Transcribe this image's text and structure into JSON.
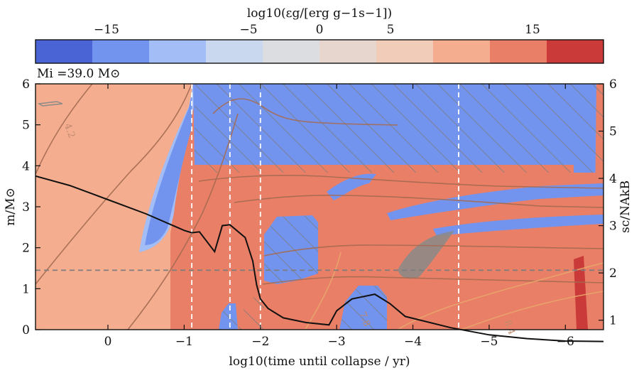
{
  "colorbar": {
    "label": "log10(εg/[erg g−1s−1])",
    "ticks": [
      {
        "value": -15,
        "label": "−15"
      },
      {
        "value": -5,
        "label": "−5"
      },
      {
        "value": 0,
        "label": "0"
      },
      {
        "value": 5,
        "label": "5"
      },
      {
        "value": 15,
        "label": "15"
      }
    ],
    "range": [
      -20,
      20
    ],
    "bins": 10,
    "colors": [
      "#4a64d6",
      "#7394ee",
      "#a3bdf7",
      "#c9d7ef",
      "#dcdde1",
      "#e6d6ce",
      "#f1cdb9",
      "#f4ad8f",
      "#e97f66",
      "#c93a38"
    ]
  },
  "annotation": {
    "mass_label": "Mi =39.0 M⊙"
  },
  "chart_data": {
    "type": "heatmap",
    "xlabel": "log10(time until collapse / yr)",
    "ylabel": "m/M⊙",
    "ylabel_right": "sc/NAkB",
    "xlim": [
      0.95,
      -6.5
    ],
    "ylim": [
      0,
      6
    ],
    "ylim_right": [
      0.8,
      6
    ],
    "x_ticks": [
      {
        "value": 0,
        "label": "0"
      },
      {
        "value": -1,
        "label": "−1"
      },
      {
        "value": -2,
        "label": "−2"
      },
      {
        "value": -3,
        "label": "−3"
      },
      {
        "value": -4,
        "label": "−4"
      },
      {
        "value": -5,
        "label": "−5"
      },
      {
        "value": -6,
        "label": "−6"
      }
    ],
    "y_ticks": [
      0,
      1,
      2,
      3,
      4,
      5,
      6
    ],
    "y_ticks_right": [
      1,
      2,
      3,
      4,
      5,
      6
    ],
    "vertical_lines_x": [
      -1.1,
      -1.6,
      -2.0,
      -4.6
    ],
    "horizontal_line_y": 1.45,
    "contour_labels": [
      {
        "text": "4.2",
        "x": 0.57,
        "y": 5.0
      },
      {
        "text": "7.8",
        "x": -3.3,
        "y": 0.4
      },
      {
        "text": "8.4",
        "x": -5.2,
        "y": 0.2
      }
    ],
    "entropy_line": {
      "x": [
        0.95,
        0.5,
        0.0,
        -0.5,
        -1.0,
        -1.1,
        -1.2,
        -1.4,
        -1.5,
        -1.6,
        -1.8,
        -1.9,
        -1.95,
        -2.0,
        -2.1,
        -2.3,
        -2.6,
        -2.9,
        -3.0,
        -3.2,
        -3.5,
        -3.7,
        -3.9,
        -4.5,
        -5.0,
        -5.5,
        -6.0,
        -6.5
      ],
      "y": [
        4.05,
        3.85,
        3.55,
        3.25,
        2.9,
        2.85,
        2.87,
        2.45,
        3.0,
        3.02,
        2.75,
        2.25,
        1.75,
        1.45,
        1.25,
        1.05,
        0.95,
        0.9,
        1.2,
        1.45,
        1.55,
        1.35,
        1.08,
        0.84,
        0.69,
        0.61,
        0.56,
        0.55
      ]
    }
  }
}
